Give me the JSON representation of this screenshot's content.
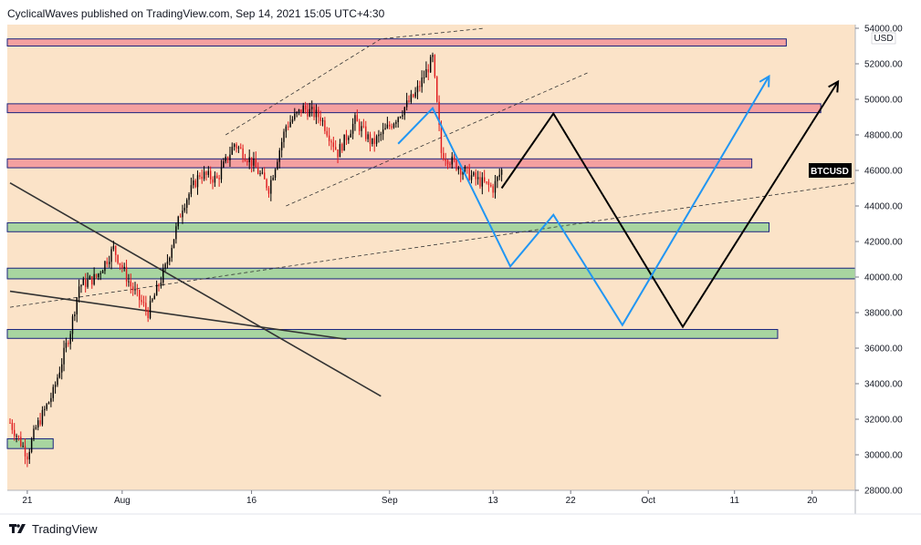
{
  "header": {
    "text": "CyclicalWaves published on TradingView.com, Sep 14, 2021 15:05 UTC+4:30"
  },
  "footer": {
    "brand": "TradingView",
    "logo_icon": "tradingview-logo-icon"
  },
  "colors": {
    "background": "#fbe3c8",
    "resistance_zone": "#f4a0a0",
    "support_zone": "#a8d5a0",
    "zone_border": "#1a237e",
    "candle_up": "#000000",
    "candle_down": "#e0191c",
    "projection_black": "#000000",
    "projection_blue": "#2196f3",
    "trendline": "#333333"
  },
  "chart_data": {
    "type": "candlestick",
    "symbol": "BTCUSD",
    "currency": "USD",
    "last_price": 46000,
    "ylim": [
      28000,
      54000
    ],
    "y_ticks": [
      {
        "value": 28000,
        "label": "28000.00"
      },
      {
        "value": 30000,
        "label": "30000.00"
      },
      {
        "value": 32000,
        "label": "32000.00"
      },
      {
        "value": 34000,
        "label": "34000.00"
      },
      {
        "value": 36000,
        "label": "36000.00"
      },
      {
        "value": 38000,
        "label": "38000.00"
      },
      {
        "value": 40000,
        "label": "40000.00"
      },
      {
        "value": 42000,
        "label": "42000.00"
      },
      {
        "value": 44000,
        "label": "44000.00"
      },
      {
        "value": 46000,
        "label": "46000.00"
      },
      {
        "value": 48000,
        "label": "48000.00"
      },
      {
        "value": 50000,
        "label": "50000.00"
      },
      {
        "value": 52000,
        "label": "52000.00"
      },
      {
        "value": 54000,
        "label": "54000.00"
      }
    ],
    "x_range": [
      "2021-07-19",
      "2021-10-25"
    ],
    "x_ticks": [
      {
        "date": "2021-07-21",
        "label": "21"
      },
      {
        "date": "2021-08-01",
        "label": "Aug"
      },
      {
        "date": "2021-08-16",
        "label": "16"
      },
      {
        "date": "2021-09-01",
        "label": "Sep"
      },
      {
        "date": "2021-09-13",
        "label": "13"
      },
      {
        "date": "2021-09-22",
        "label": "22"
      },
      {
        "date": "2021-10-01",
        "label": "Oct"
      },
      {
        "date": "2021-10-11",
        "label": "11"
      },
      {
        "date": "2021-10-20",
        "label": "20"
      }
    ],
    "price_path": [
      [
        "2021-07-19",
        31800
      ],
      [
        "2021-07-21",
        30000
      ],
      [
        "2021-07-22",
        31500
      ],
      [
        "2021-07-24",
        33500
      ],
      [
        "2021-07-26",
        37000
      ],
      [
        "2021-07-27",
        39500
      ],
      [
        "2021-07-29",
        40000
      ],
      [
        "2021-07-31",
        41600
      ],
      [
        "2021-08-02",
        39500
      ],
      [
        "2021-08-04",
        38000
      ],
      [
        "2021-08-06",
        40500
      ],
      [
        "2021-08-08",
        44000
      ],
      [
        "2021-08-10",
        45800
      ],
      [
        "2021-08-12",
        45500
      ],
      [
        "2021-08-14",
        47500
      ],
      [
        "2021-08-16",
        46500
      ],
      [
        "2021-08-18",
        45000
      ],
      [
        "2021-08-20",
        48500
      ],
      [
        "2021-08-22",
        49500
      ],
      [
        "2021-08-24",
        49000
      ],
      [
        "2021-08-26",
        47000
      ],
      [
        "2021-08-28",
        48800
      ],
      [
        "2021-08-30",
        47500
      ],
      [
        "2021-09-01",
        48500
      ],
      [
        "2021-09-04",
        50300
      ],
      [
        "2021-09-06",
        52300
      ],
      [
        "2021-09-07",
        47000
      ],
      [
        "2021-09-09",
        46200
      ],
      [
        "2021-09-11",
        45500
      ],
      [
        "2021-09-13",
        45000
      ],
      [
        "2021-09-14",
        46000
      ]
    ],
    "resistance_zones": [
      {
        "from": "2021-07-19",
        "to": "2021-10-17",
        "low": 53000,
        "high": 53400
      },
      {
        "from": "2021-07-19",
        "to": "2021-10-21",
        "low": 49250,
        "high": 49750
      },
      {
        "from": "2021-07-19",
        "to": "2021-10-13",
        "low": 46150,
        "high": 46650
      }
    ],
    "support_zones": [
      {
        "from": "2021-07-19",
        "to": "2021-10-15",
        "low": 42550,
        "high": 43050
      },
      {
        "from": "2021-07-19",
        "to": "2021-10-25",
        "low": 39900,
        "high": 40500
      },
      {
        "from": "2021-07-19",
        "to": "2021-10-16",
        "low": 36550,
        "high": 37050
      },
      {
        "from": "2021-07-19",
        "to": "2021-07-24",
        "low": 30350,
        "high": 30900
      }
    ],
    "trendlines": [
      {
        "points": [
          [
            "2021-07-19",
            45300
          ],
          [
            "2021-08-31",
            33300
          ]
        ],
        "style": "solid"
      },
      {
        "points": [
          [
            "2021-07-19",
            39200
          ],
          [
            "2021-08-27",
            36500
          ]
        ],
        "style": "solid"
      },
      {
        "points": [
          [
            "2021-08-13",
            48000
          ],
          [
            "2021-08-31",
            53400
          ],
          [
            "2021-09-12",
            54000
          ]
        ],
        "style": "dashed"
      },
      {
        "points": [
          [
            "2021-08-20",
            44000
          ],
          [
            "2021-09-24",
            51500
          ]
        ],
        "style": "dashed"
      },
      {
        "points": [
          [
            "2021-07-19",
            38300
          ],
          [
            "2021-10-25",
            45300
          ]
        ],
        "style": "dashed"
      }
    ],
    "projections": [
      {
        "name": "black",
        "points": [
          [
            "2021-09-14",
            45000
          ],
          [
            "2021-09-20",
            49200
          ],
          [
            "2021-10-05",
            37200
          ],
          [
            "2021-10-23",
            51000
          ]
        ]
      },
      {
        "name": "blue",
        "points": [
          [
            "2021-09-02",
            47500
          ],
          [
            "2021-09-06",
            49500
          ],
          [
            "2021-09-15",
            40600
          ],
          [
            "2021-09-20",
            43500
          ],
          [
            "2021-09-28",
            37300
          ],
          [
            "2021-10-15",
            51300
          ]
        ]
      }
    ]
  }
}
